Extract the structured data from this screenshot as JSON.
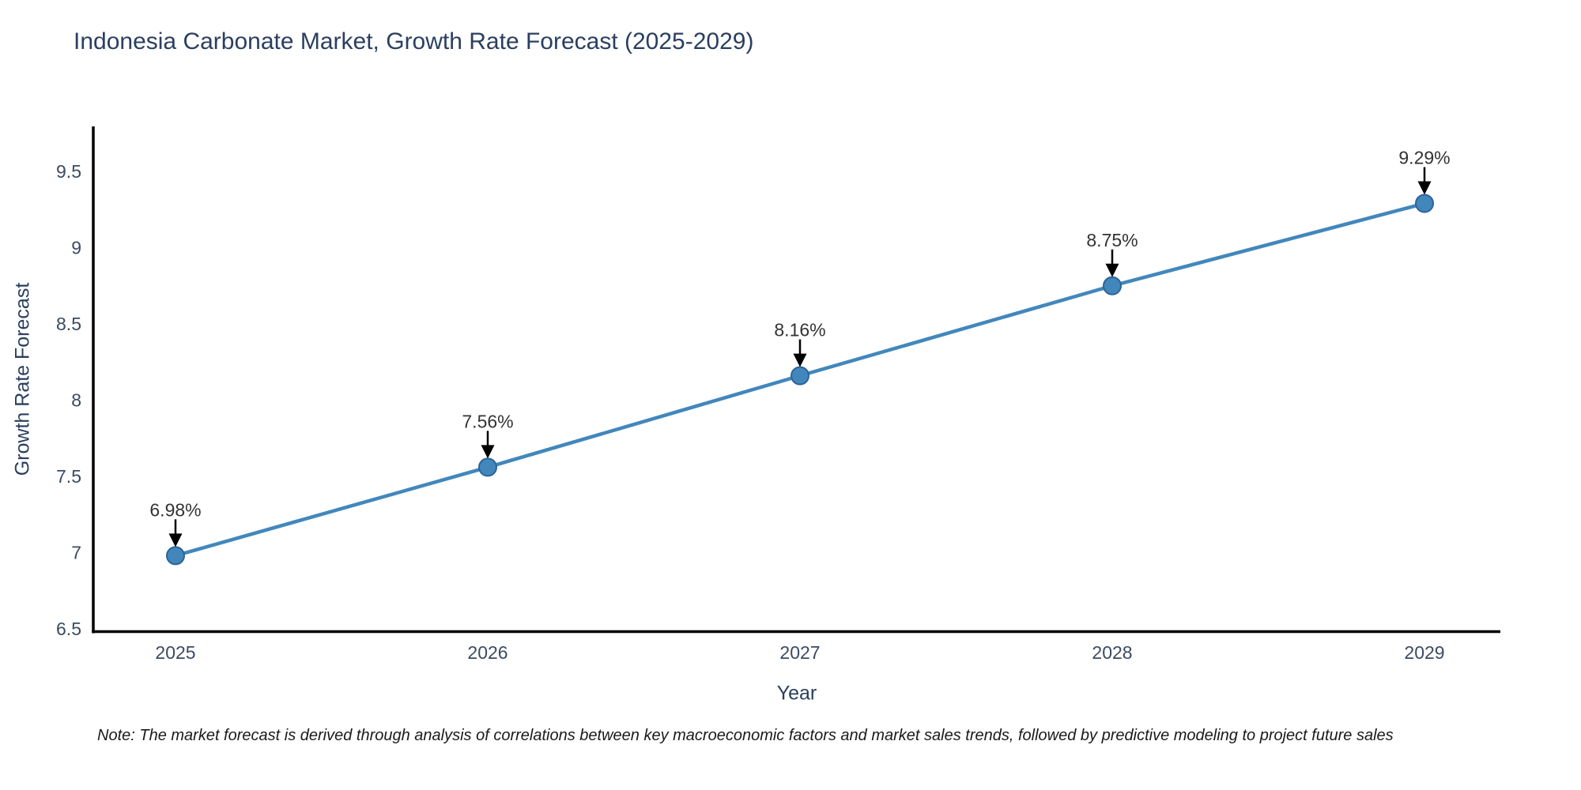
{
  "note": "Note: The market forecast is derived through analysis of correlations between key macroeconomic factors and market sales trends, followed by predictive modeling to project future sales",
  "chart_data": {
    "type": "line",
    "title": "Indonesia Carbonate Market, Growth Rate Forecast (2025-2029)",
    "xlabel": "Year",
    "ylabel": "Growth Rate Forecast",
    "categories": [
      "2025",
      "2026",
      "2027",
      "2028",
      "2029"
    ],
    "values": [
      6.98,
      7.56,
      8.16,
      8.75,
      9.29
    ],
    "point_labels": [
      "6.98%",
      "7.56%",
      "8.16%",
      "8.75%",
      "9.29%"
    ],
    "yticks": [
      6.5,
      7,
      7.5,
      8,
      8.5,
      9,
      9.5
    ],
    "ytick_labels": [
      "6.5",
      "7",
      "7.5",
      "8",
      "8.5",
      "9",
      "9.5"
    ],
    "ylim": [
      6.5,
      9.81
    ],
    "grid": false,
    "legend": "none",
    "colors": {
      "line": "#4287bc",
      "marker_fill": "#4287bc",
      "marker_edge": "#2e6396",
      "axis_line": "#000000",
      "tick_label": "#3b4a63",
      "title": "#2a3f5f",
      "axis_label": "#2a3f5f",
      "annotation_text": "#333333",
      "annotation_arrow": "#000000",
      "background": "#ffffff"
    }
  }
}
